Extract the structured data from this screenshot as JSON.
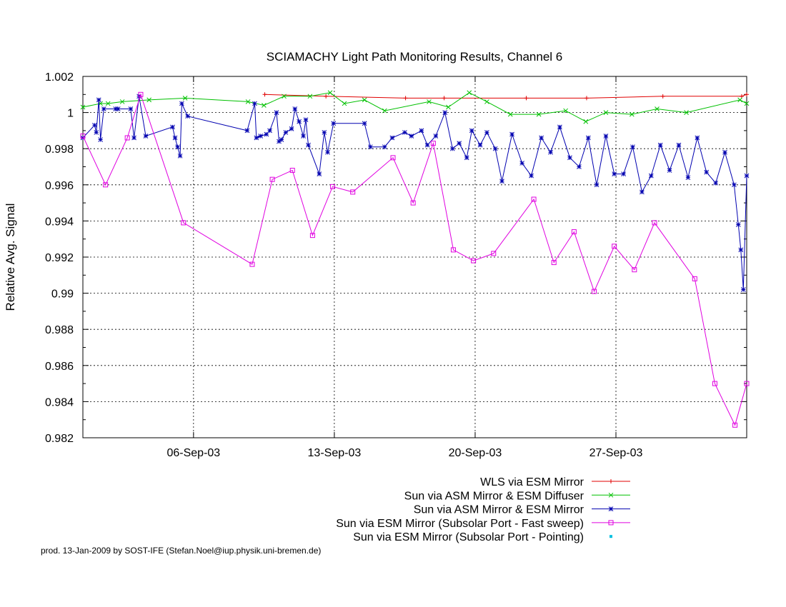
{
  "footer": "prod. 13-Jan-2009 by SOST-IFE (Stefan.Noel@iup.physik.uni-bremen.de)",
  "chart_data": {
    "type": "line",
    "title": "SCIAMACHY Light Path Monitoring Results, Channel 6",
    "xlabel": "",
    "ylabel": "Relative Avg. Signal",
    "x_axis": {
      "type": "date",
      "start": "2003-08-31T12:00",
      "end": "2003-10-03T12:00"
    },
    "xticks": [
      {
        "date": "2003-09-06",
        "label": "06-Sep-03"
      },
      {
        "date": "2003-09-13",
        "label": "13-Sep-03"
      },
      {
        "date": "2003-09-20",
        "label": "20-Sep-03"
      },
      {
        "date": "2003-09-27",
        "label": "27-Sep-03"
      }
    ],
    "ylim": [
      0.982,
      1.002
    ],
    "yticks": [
      {
        "value": 0.982,
        "label": "0.982"
      },
      {
        "value": 0.984,
        "label": "0.984"
      },
      {
        "value": 0.986,
        "label": "0.986"
      },
      {
        "value": 0.988,
        "label": "0.988"
      },
      {
        "value": 0.99,
        "label": "0.99"
      },
      {
        "value": 0.992,
        "label": "0.992"
      },
      {
        "value": 0.994,
        "label": "0.994"
      },
      {
        "value": 0.996,
        "label": "0.996"
      },
      {
        "value": 0.998,
        "label": "0.998"
      },
      {
        "value": 1.0,
        "label": "1"
      },
      {
        "value": 1.002,
        "label": "1.002"
      }
    ],
    "grid": true,
    "legend_position": "bottom",
    "series": [
      {
        "name": "WLS via ESM Mirror",
        "color": "#e00000",
        "marker": "plus",
        "points": [
          [
            "2003-09-09T13:00",
            1.001
          ],
          [
            "2003-09-12T14:00",
            1.0009
          ],
          [
            "2003-09-16T13:00",
            1.0008
          ],
          [
            "2003-09-18T11:00",
            1.0008
          ],
          [
            "2003-09-22T13:00",
            1.0008
          ],
          [
            "2003-09-25T13:00",
            1.0008
          ],
          [
            "2003-09-29T08:00",
            1.0009
          ],
          [
            "2003-10-03T06:00",
            1.0009
          ],
          [
            "2003-10-03T12:00",
            1.001
          ]
        ]
      },
      {
        "name": "Sun via ASM Mirror & ESM Diffuser",
        "color": "#00c000",
        "marker": "cross",
        "points": [
          [
            "2003-08-31T12:00",
            1.0003
          ],
          [
            "2003-09-01T09:00",
            1.0005
          ],
          [
            "2003-09-01T18:00",
            1.0005
          ],
          [
            "2003-09-02T11:00",
            1.0006
          ],
          [
            "2003-09-03T19:00",
            1.0007
          ],
          [
            "2003-09-05T14:00",
            1.0008
          ],
          [
            "2003-09-08T17:00",
            1.0006
          ],
          [
            "2003-09-09T12:00",
            1.0004
          ],
          [
            "2003-09-10T12:00",
            1.0009
          ],
          [
            "2003-09-11T19:00",
            1.0009
          ],
          [
            "2003-09-12T19:00",
            1.0011
          ],
          [
            "2003-09-13T12:00",
            1.0005
          ],
          [
            "2003-09-14T12:00",
            1.0007
          ],
          [
            "2003-09-15T12:00",
            1.0001
          ],
          [
            "2003-09-17T17:00",
            1.0006
          ],
          [
            "2003-09-18T16:00",
            1.0003
          ],
          [
            "2003-09-19T17:00",
            1.0011
          ],
          [
            "2003-09-20T14:00",
            1.0006
          ],
          [
            "2003-09-21T18:00",
            0.9999
          ],
          [
            "2003-09-23T04:00",
            0.9999
          ],
          [
            "2003-09-24T12:00",
            1.0001
          ],
          [
            "2003-09-25T12:00",
            0.9995
          ],
          [
            "2003-09-26T12:00",
            1.0
          ],
          [
            "2003-09-27T19:00",
            0.9999
          ],
          [
            "2003-09-29T01:00",
            1.0002
          ],
          [
            "2003-09-30T12:00",
            1.0
          ],
          [
            "2003-10-03T04:00",
            1.0007
          ],
          [
            "2003-10-03T12:00",
            1.0005
          ]
        ]
      },
      {
        "name": "Sun via ASM Mirror & ESM Mirror",
        "color": "#0000b0",
        "marker": "star",
        "points": [
          [
            "2003-08-31T12:00",
            0.9986
          ],
          [
            "2003-09-01T02:00",
            0.9993
          ],
          [
            "2003-09-01T04:00",
            0.9989
          ],
          [
            "2003-09-01T07:00",
            1.0007
          ],
          [
            "2003-09-01T09:00",
            0.9985
          ],
          [
            "2003-09-01T13:00",
            1.0002
          ],
          [
            "2003-09-02T03:00",
            1.0002
          ],
          [
            "2003-09-02T06:00",
            1.0002
          ],
          [
            "2003-09-02T21:00",
            1.0002
          ],
          [
            "2003-09-03T01:00",
            0.9986
          ],
          [
            "2003-09-03T07:00",
            1.0009
          ],
          [
            "2003-09-03T15:00",
            0.9987
          ],
          [
            "2003-09-04T23:00",
            0.9992
          ],
          [
            "2003-09-05T02:00",
            0.9986
          ],
          [
            "2003-09-05T05:00",
            0.9981
          ],
          [
            "2003-09-05T08:00",
            0.9976
          ],
          [
            "2003-09-05T10:00",
            1.0005
          ],
          [
            "2003-09-05T17:00",
            0.9998
          ],
          [
            "2003-09-08T16:00",
            0.999
          ],
          [
            "2003-09-09T01:00",
            1.0005
          ],
          [
            "2003-09-09T03:00",
            0.9986
          ],
          [
            "2003-09-09T08:00",
            0.9987
          ],
          [
            "2003-09-09T15:00",
            0.9988
          ],
          [
            "2003-09-09T19:00",
            0.999
          ],
          [
            "2003-09-10T03:00",
            1.0
          ],
          [
            "2003-09-10T06:00",
            0.9984
          ],
          [
            "2003-09-10T09:00",
            0.9985
          ],
          [
            "2003-09-10T14:00",
            0.9989
          ],
          [
            "2003-09-10T21:00",
            0.9991
          ],
          [
            "2003-09-11T01:00",
            1.0002
          ],
          [
            "2003-09-11T06:00",
            0.9995
          ],
          [
            "2003-09-11T11:00",
            0.9987
          ],
          [
            "2003-09-11T14:00",
            0.9996
          ],
          [
            "2003-09-11T17:00",
            0.9982
          ],
          [
            "2003-09-12T06:00",
            0.9966
          ],
          [
            "2003-09-12T12:00",
            0.9989
          ],
          [
            "2003-09-12T16:00",
            0.9978
          ],
          [
            "2003-09-12T23:00",
            0.9994
          ],
          [
            "2003-09-14T12:00",
            0.9994
          ],
          [
            "2003-09-14T19:00",
            0.9981
          ],
          [
            "2003-09-15T12:00",
            0.9981
          ],
          [
            "2003-09-15T21:00",
            0.9986
          ],
          [
            "2003-09-16T12:00",
            0.9989
          ],
          [
            "2003-09-16T20:00",
            0.9987
          ],
          [
            "2003-09-17T08:00",
            0.999
          ],
          [
            "2003-09-17T15:00",
            0.9982
          ],
          [
            "2003-09-18T01:00",
            0.9987
          ],
          [
            "2003-09-18T12:00",
            1.0
          ],
          [
            "2003-09-18T21:00",
            0.998
          ],
          [
            "2003-09-19T05:00",
            0.9983
          ],
          [
            "2003-09-19T14:00",
            0.9975
          ],
          [
            "2003-09-19T20:00",
            0.999
          ],
          [
            "2003-09-20T06:00",
            0.9982
          ],
          [
            "2003-09-20T14:00",
            0.9989
          ],
          [
            "2003-09-21T00:00",
            0.998
          ],
          [
            "2003-09-21T08:00",
            0.9962
          ],
          [
            "2003-09-21T20:00",
            0.9988
          ],
          [
            "2003-09-22T08:00",
            0.9972
          ],
          [
            "2003-09-22T19:00",
            0.9965
          ],
          [
            "2003-09-23T07:00",
            0.9986
          ],
          [
            "2003-09-23T18:00",
            0.9978
          ],
          [
            "2003-09-24T05:00",
            0.9992
          ],
          [
            "2003-09-24T17:00",
            0.9975
          ],
          [
            "2003-09-25T04:00",
            0.997
          ],
          [
            "2003-09-25T15:00",
            0.9986
          ],
          [
            "2003-09-26T01:00",
            0.996
          ],
          [
            "2003-09-26T12:00",
            0.9987
          ],
          [
            "2003-09-26T22:00",
            0.9966
          ],
          [
            "2003-09-27T09:00",
            0.9966
          ],
          [
            "2003-09-27T20:00",
            0.9981
          ],
          [
            "2003-09-28T07:00",
            0.9956
          ],
          [
            "2003-09-28T18:00",
            0.9965
          ],
          [
            "2003-09-29T05:00",
            0.9982
          ],
          [
            "2003-09-29T16:00",
            0.9968
          ],
          [
            "2003-09-30T03:00",
            0.9982
          ],
          [
            "2003-09-30T14:00",
            0.9964
          ],
          [
            "2003-10-01T01:00",
            0.9986
          ],
          [
            "2003-10-01T12:00",
            0.9967
          ],
          [
            "2003-10-01T23:00",
            0.9961
          ],
          [
            "2003-10-02T10:00",
            0.9978
          ],
          [
            "2003-10-02T21:00",
            0.996
          ],
          [
            "2003-10-03T02:00",
            0.9938
          ],
          [
            "2003-10-03T05:00",
            0.9924
          ],
          [
            "2003-10-03T08:00",
            0.9902
          ],
          [
            "2003-10-03T12:00",
            0.9965
          ]
        ]
      },
      {
        "name": "Sun via ESM Mirror (Subsolar Port - Fast sweep)",
        "color": "#e000e0",
        "marker": "square",
        "points": [
          [
            "2003-08-31T12:00",
            0.9987
          ],
          [
            "2003-09-01T15:00",
            0.996
          ],
          [
            "2003-09-02T17:00",
            0.9986
          ],
          [
            "2003-09-03T09:00",
            1.001
          ],
          [
            "2003-09-05T12:00",
            0.9939
          ],
          [
            "2003-09-08T22:00",
            0.9916
          ],
          [
            "2003-09-09T22:00",
            0.9963
          ],
          [
            "2003-09-10T22:00",
            0.9968
          ],
          [
            "2003-09-11T22:00",
            0.9932
          ],
          [
            "2003-09-12T22:00",
            0.9959
          ],
          [
            "2003-09-13T22:00",
            0.9956
          ],
          [
            "2003-09-15T22:00",
            0.9975
          ],
          [
            "2003-09-16T22:00",
            0.995
          ],
          [
            "2003-09-17T22:00",
            0.9983
          ],
          [
            "2003-09-18T22:00",
            0.9924
          ],
          [
            "2003-09-19T22:00",
            0.9918
          ],
          [
            "2003-09-20T22:00",
            0.9922
          ],
          [
            "2003-09-22T22:00",
            0.9952
          ],
          [
            "2003-09-23T22:00",
            0.9917
          ],
          [
            "2003-09-24T22:00",
            0.9934
          ],
          [
            "2003-09-25T22:00",
            0.9901
          ],
          [
            "2003-09-26T22:00",
            0.9926
          ],
          [
            "2003-09-27T22:00",
            0.9913
          ],
          [
            "2003-09-28T22:00",
            0.9939
          ],
          [
            "2003-09-30T22:00",
            0.9908
          ],
          [
            "2003-10-01T22:00",
            0.985
          ],
          [
            "2003-10-02T22:00",
            0.9827
          ],
          [
            "2003-10-03T12:00",
            0.985
          ]
        ]
      },
      {
        "name": "Sun via ESM Mirror (Subsolar Port - Pointing)",
        "color": "#00c0e0",
        "marker": "dot",
        "points": []
      }
    ]
  }
}
